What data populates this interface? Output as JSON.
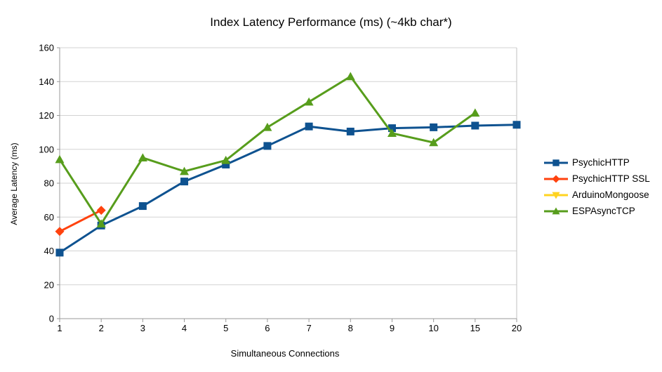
{
  "chart_data": {
    "type": "line",
    "title": "Index Latency Performance (ms) (~4kb char*)",
    "xlabel": "Simultaneous Connections",
    "ylabel": "Average Latency (ms)",
    "categories": [
      "1",
      "2",
      "3",
      "4",
      "5",
      "6",
      "7",
      "8",
      "9",
      "10",
      "15",
      "20"
    ],
    "ylim": [
      0,
      160
    ],
    "yticks": [
      0,
      20,
      40,
      60,
      80,
      100,
      120,
      140,
      160
    ],
    "grid": "horizontal",
    "legend_position": "right",
    "series": [
      {
        "name": "PsychicHTTP",
        "color": "#0e5290",
        "marker": "square",
        "values": [
          39,
          55,
          66.5,
          81,
          91,
          102,
          113.5,
          110.5,
          112.5,
          113,
          114,
          114.5
        ]
      },
      {
        "name": "PsychicHTTP SSL",
        "color": "#ff420e",
        "marker": "diamond",
        "values": [
          51.5,
          64,
          null,
          null,
          null,
          null,
          null,
          null,
          null,
          null,
          null,
          null
        ]
      },
      {
        "name": "ArduinoMongoose",
        "color": "#ffd320",
        "marker": "triangle-down",
        "values": [
          null,
          null,
          null,
          null,
          null,
          null,
          null,
          null,
          null,
          null,
          null,
          null
        ]
      },
      {
        "name": "ESPAsyncTCP",
        "color": "#579d1c",
        "marker": "triangle-up",
        "values": [
          94,
          56,
          95,
          87,
          93.5,
          113,
          128,
          143,
          109.5,
          104,
          121.5,
          null
        ]
      }
    ],
    "colors": {
      "background": "#ffffff",
      "gridline": "#d3d3d3",
      "axis": "#999999",
      "right_border": "#c0c0c0",
      "text": "#000000"
    }
  }
}
